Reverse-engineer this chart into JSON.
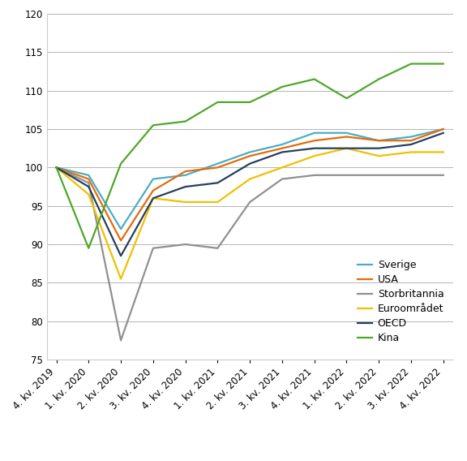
{
  "title": "",
  "xlabel": "",
  "ylabel": "",
  "xlim": [
    -0.3,
    12.3
  ],
  "ylim": [
    75,
    120
  ],
  "yticks": [
    75,
    80,
    85,
    90,
    95,
    100,
    105,
    110,
    115,
    120
  ],
  "xtick_labels": [
    "4. kv. 2019",
    "1. kv. 2020",
    "2. kv. 2020",
    "3. kv. 2020",
    "4. kv. 2020",
    "1. kv. 2021",
    "2. kv. 2021",
    "3. kv. 2021",
    "4. kv. 2021",
    "1. kv. 2022",
    "2. kv. 2022",
    "3. kv. 2022",
    "4. kv. 2022"
  ],
  "series": {
    "Sverige": {
      "color": "#4BACC6",
      "values": [
        100.0,
        99.0,
        92.0,
        98.5,
        99.0,
        100.5,
        102.0,
        103.0,
        104.5,
        104.5,
        103.5,
        104.0,
        105.0
      ]
    },
    "USA": {
      "color": "#E36C09",
      "values": [
        100.0,
        98.5,
        90.5,
        97.0,
        99.5,
        100.0,
        101.5,
        102.5,
        103.5,
        104.0,
        103.5,
        103.5,
        105.0
      ]
    },
    "Storbritannia": {
      "color": "#909090",
      "values": [
        100.0,
        98.0,
        77.5,
        89.5,
        90.0,
        89.5,
        95.5,
        98.5,
        99.0,
        99.0,
        99.0,
        99.0,
        99.0
      ]
    },
    "Euroområdet": {
      "color": "#F0C000",
      "values": [
        100.0,
        96.5,
        85.5,
        96.0,
        95.5,
        95.5,
        98.5,
        100.0,
        101.5,
        102.5,
        101.5,
        102.0,
        102.0
      ]
    },
    "OECD": {
      "color": "#243F60",
      "values": [
        100.0,
        97.5,
        88.5,
        96.0,
        97.5,
        98.0,
        100.5,
        102.0,
        102.5,
        102.5,
        102.5,
        103.0,
        104.5
      ]
    },
    "Kina": {
      "color": "#4EA72A",
      "values": [
        100.0,
        89.5,
        100.5,
        105.5,
        106.0,
        108.5,
        108.5,
        110.5,
        111.5,
        109.0,
        111.5,
        113.5,
        113.5
      ]
    }
  },
  "legend_order": [
    "Sverige",
    "USA",
    "Storbritannia",
    "Euroområdet",
    "OECD",
    "Kina"
  ],
  "background_color": "#ffffff",
  "grid_color": "#aaaaaa",
  "tick_fontsize": 8.5,
  "legend_fontsize": 9.0,
  "linewidth": 1.6
}
